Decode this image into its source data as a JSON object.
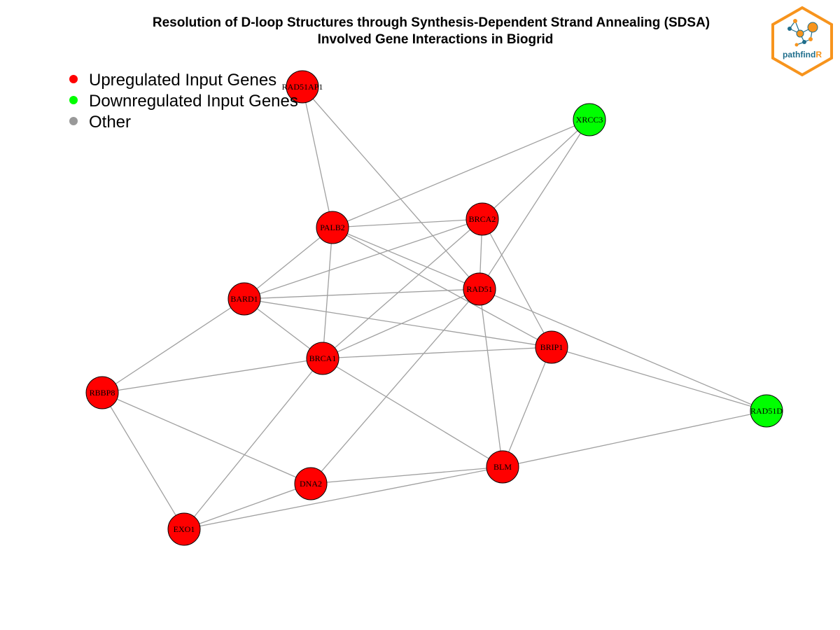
{
  "title": {
    "line1": "Resolution of D-loop Structures through Synthesis-Dependent Strand Annealing (SDSA)",
    "line2": "Involved Gene Interactions in Biogrid"
  },
  "legend": {
    "items": [
      {
        "label": "Upregulated Input Genes",
        "color": "#ff0000"
      },
      {
        "label": "Downregulated Input Genes",
        "color": "#00ff00"
      },
      {
        "label": "Other",
        "color": "#999999"
      }
    ]
  },
  "logo": {
    "text_main": "pathfind",
    "text_accent": "R",
    "border_color": "#f7941d",
    "text_color": "#1f6e8c",
    "accent_color": "#f7941d"
  },
  "colors": {
    "up": "#ff0000",
    "down": "#00ff00",
    "edge": "#a0a0a0"
  },
  "network": {
    "nodes": [
      {
        "id": "RAD51AP1",
        "regulation": "up"
      },
      {
        "id": "XRCC3",
        "regulation": "down"
      },
      {
        "id": "PALB2",
        "regulation": "up"
      },
      {
        "id": "BRCA2",
        "regulation": "up"
      },
      {
        "id": "RAD51",
        "regulation": "up"
      },
      {
        "id": "BARD1",
        "regulation": "up"
      },
      {
        "id": "BRCA1",
        "regulation": "up"
      },
      {
        "id": "BRIP1",
        "regulation": "up"
      },
      {
        "id": "RBBP8",
        "regulation": "up"
      },
      {
        "id": "RAD51D",
        "regulation": "down"
      },
      {
        "id": "BLM",
        "regulation": "up"
      },
      {
        "id": "DNA2",
        "regulation": "up"
      },
      {
        "id": "EXO1",
        "regulation": "up"
      }
    ],
    "edges": [
      [
        "RAD51AP1",
        "PALB2"
      ],
      [
        "RAD51AP1",
        "RAD51"
      ],
      [
        "XRCC3",
        "PALB2"
      ],
      [
        "XRCC3",
        "BRCA2"
      ],
      [
        "XRCC3",
        "RAD51"
      ],
      [
        "PALB2",
        "BRCA2"
      ],
      [
        "PALB2",
        "RAD51"
      ],
      [
        "PALB2",
        "BARD1"
      ],
      [
        "PALB2",
        "BRCA1"
      ],
      [
        "PALB2",
        "BRIP1"
      ],
      [
        "BRCA2",
        "RAD51"
      ],
      [
        "BRCA2",
        "BARD1"
      ],
      [
        "BRCA2",
        "BRCA1"
      ],
      [
        "BRCA2",
        "BRIP1"
      ],
      [
        "RAD51",
        "BARD1"
      ],
      [
        "RAD51",
        "BRCA1"
      ],
      [
        "RAD51",
        "DNA2"
      ],
      [
        "RAD51",
        "BLM"
      ],
      [
        "RAD51",
        "RAD51D"
      ],
      [
        "BARD1",
        "BRCA1"
      ],
      [
        "BARD1",
        "BRIP1"
      ],
      [
        "BARD1",
        "RBBP8"
      ],
      [
        "BRCA1",
        "BRIP1"
      ],
      [
        "BRCA1",
        "RBBP8"
      ],
      [
        "BRCA1",
        "BLM"
      ],
      [
        "BRCA1",
        "EXO1"
      ],
      [
        "BRIP1",
        "BLM"
      ],
      [
        "BRIP1",
        "RAD51D"
      ],
      [
        "RBBP8",
        "DNA2"
      ],
      [
        "RBBP8",
        "EXO1"
      ],
      [
        "RAD51D",
        "BLM"
      ],
      [
        "BLM",
        "DNA2"
      ],
      [
        "BLM",
        "EXO1"
      ],
      [
        "DNA2",
        "EXO1"
      ]
    ]
  }
}
